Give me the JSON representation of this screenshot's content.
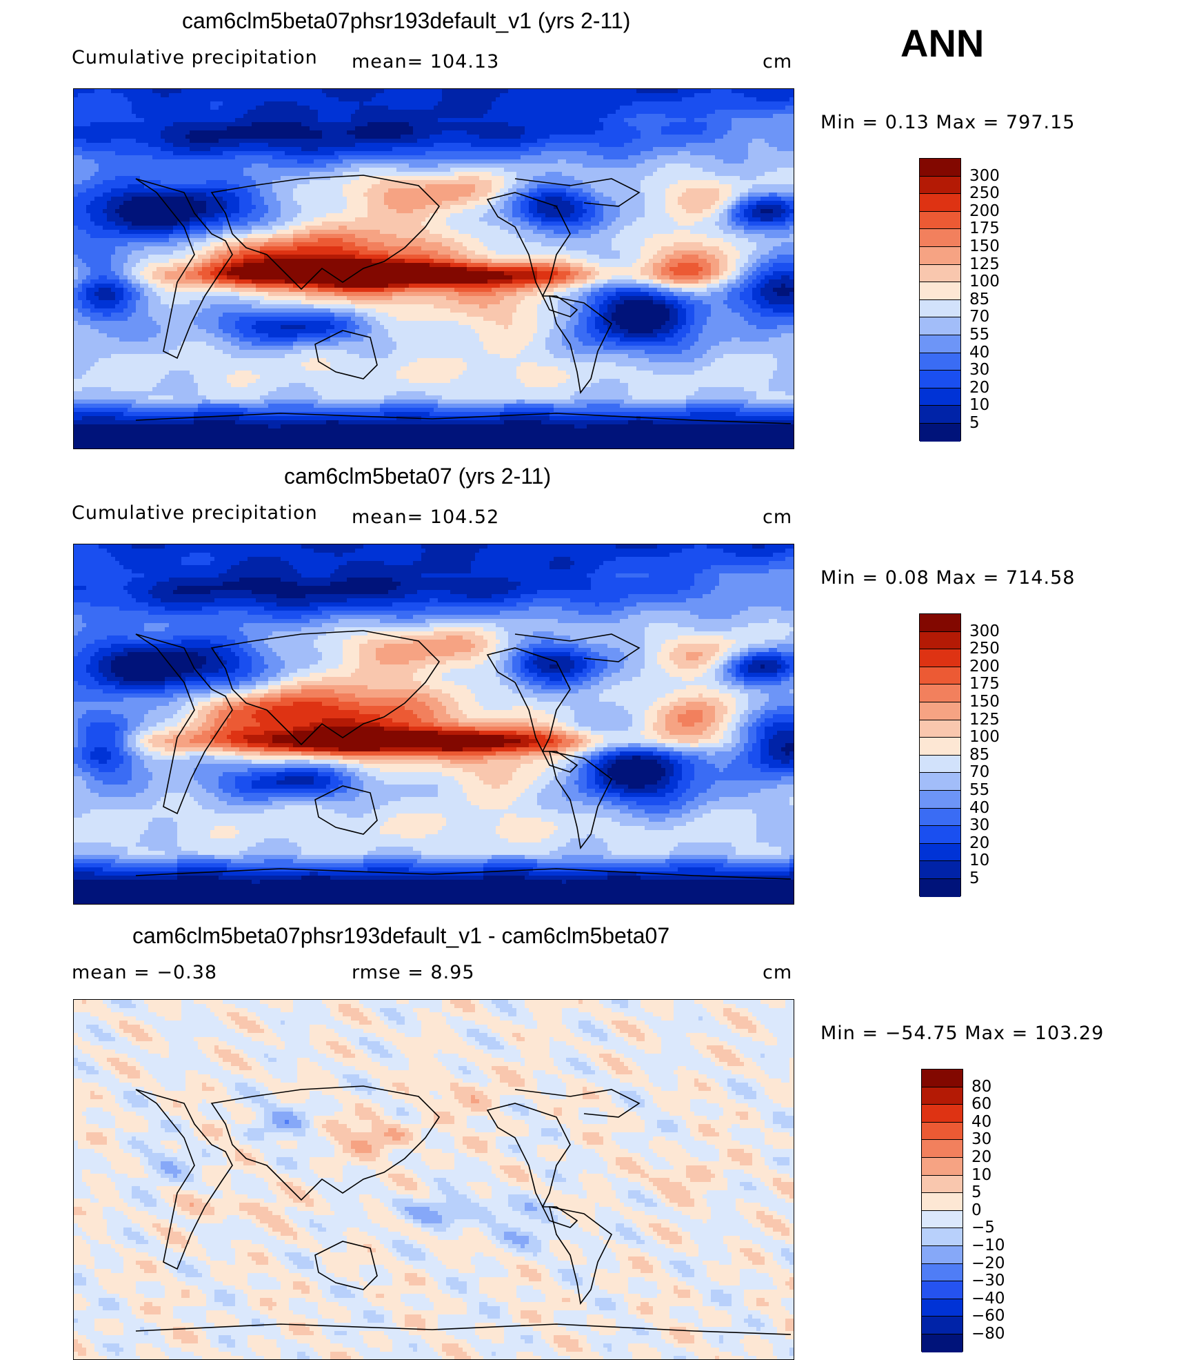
{
  "season": "ANN",
  "palette": {
    "raw": [
      "#00137a",
      "#0023a8",
      "#0033d6",
      "#1a4ff0",
      "#3a6cf4",
      "#6d95f7",
      "#a2bdf9",
      "#d2e2fb",
      "#fde7d4",
      "#f9c7ae",
      "#f6a383",
      "#f2805d",
      "#ec5a34",
      "#de3313",
      "#b41a05",
      "#820800"
    ],
    "diff": [
      "#00137a",
      "#0023a8",
      "#0033d6",
      "#2553f0",
      "#4f7df6",
      "#86a8f8",
      "#b8d0fb",
      "#dbe8fc",
      "#fde7d4",
      "#f9c7ae",
      "#f6a383",
      "#f2805d",
      "#ec5a34",
      "#de3313",
      "#b41a05",
      "#820800"
    ]
  },
  "panels": [
    {
      "title": "cam6clm5beta07phsr193default_v1 (yrs 2-11)",
      "left_label": "Cumulative precipitation",
      "mid_label": "mean=  104.13",
      "units": "cm",
      "minmax": "Min  =     0.13  Max  =  797.15",
      "levels": [
        "300",
        "250",
        "200",
        "175",
        "150",
        "125",
        "100",
        "85",
        "70",
        "55",
        "40",
        "30",
        "20",
        "10",
        "5"
      ],
      "pattern": "model"
    },
    {
      "title": "cam6clm5beta07 (yrs 2-11)",
      "left_label": "Cumulative precipitation",
      "mid_label": "mean=  104.52",
      "units": "cm",
      "minmax": "Min  =     0.08  Max  =  714.58",
      "levels": [
        "300",
        "250",
        "200",
        "175",
        "150",
        "125",
        "100",
        "85",
        "70",
        "55",
        "40",
        "30",
        "20",
        "10",
        "5"
      ],
      "pattern": "control"
    },
    {
      "title": "cam6clm5beta07phsr193default_v1 - cam6clm5beta07",
      "left_label": "mean  =    −0.38",
      "mid_label": "rmse  =      8.95",
      "units": "cm",
      "minmax": "Min  = −54.75  Max  =  103.29",
      "levels": [
        "80",
        "60",
        "40",
        "30",
        "20",
        "10",
        "5",
        "0",
        "−5",
        "−10",
        "−20",
        "−30",
        "−40",
        "−60",
        "−80"
      ],
      "pattern": "diff"
    }
  ],
  "chart_data": [
    {
      "type": "heatmap",
      "title": "cam6clm5beta07phsr193default_v1 (yrs 2-11)",
      "variable": "Cumulative precipitation",
      "mean": 104.13,
      "min": 0.13,
      "max": 797.15,
      "units": "cm",
      "contour_levels": [
        5,
        10,
        20,
        30,
        40,
        55,
        70,
        85,
        100,
        125,
        150,
        175,
        200,
        250,
        300
      ]
    },
    {
      "type": "heatmap",
      "title": "cam6clm5beta07 (yrs 2-11)",
      "variable": "Cumulative precipitation",
      "mean": 104.52,
      "min": 0.08,
      "max": 714.58,
      "units": "cm",
      "contour_levels": [
        5,
        10,
        20,
        30,
        40,
        55,
        70,
        85,
        100,
        125,
        150,
        175,
        200,
        250,
        300
      ]
    },
    {
      "type": "heatmap",
      "title": "cam6clm5beta07phsr193default_v1 - cam6clm5beta07",
      "mean": -0.38,
      "rmse": 8.95,
      "min": -54.75,
      "max": 103.29,
      "units": "cm",
      "contour_levels": [
        -80,
        -60,
        -40,
        -30,
        -20,
        -10,
        -5,
        0,
        5,
        10,
        20,
        30,
        40,
        60,
        80
      ]
    }
  ]
}
